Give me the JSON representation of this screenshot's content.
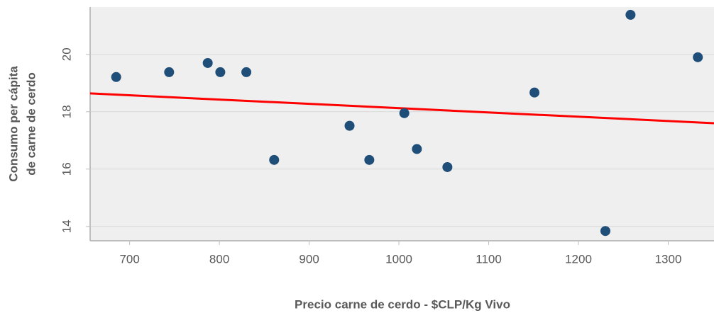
{
  "chart_data": {
    "type": "scatter",
    "xlabel": "Precio carne de cerdo - $CLP/Kg Vivo",
    "ylabel": [
      "Consumo per cápita",
      "de carne de cerdo"
    ],
    "x": [
      685,
      744,
      787,
      801,
      830,
      861,
      945,
      967,
      1006,
      1020,
      1054,
      1151,
      1230,
      1258,
      1333
    ],
    "values": [
      19.21,
      19.38,
      19.7,
      19.38,
      19.38,
      16.32,
      17.51,
      16.32,
      17.95,
      16.7,
      16.07,
      18.67,
      13.84,
      21.38,
      19.9
    ],
    "color": "#1f4e79",
    "trendline": {
      "x": [
        656,
        1351
      ],
      "y": [
        18.64,
        17.6
      ],
      "color": "#ff0000"
    },
    "xlim": [
      656,
      1351
    ],
    "ylim": [
      13.5,
      21.65
    ],
    "xticks": [
      700,
      800,
      900,
      1000,
      1100,
      1200,
      1300
    ],
    "yticks": [
      14,
      16,
      18,
      20
    ],
    "grid": true
  }
}
